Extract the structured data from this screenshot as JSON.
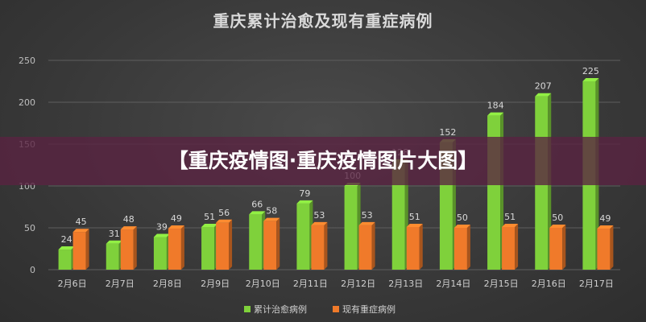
{
  "chart_data": {
    "type": "bar",
    "title": "重庆累计治愈及现有重症病例",
    "categories": [
      "2月6日",
      "2月7日",
      "2月8日",
      "2月9日",
      "2月10日",
      "2月11日",
      "2月12日",
      "2月13日",
      "2月14日",
      "2月15日",
      "2月16日",
      "2月17日"
    ],
    "series": [
      {
        "name": "累计治愈病例",
        "color": "#7fd13b",
        "values": [
          24,
          31,
          39,
          51,
          66,
          79,
          100,
          128,
          152,
          184,
          207,
          225
        ]
      },
      {
        "name": "现有重症病例",
        "color": "#f07a2a",
        "values": [
          45,
          48,
          49,
          56,
          58,
          53,
          53,
          51,
          50,
          51,
          50,
          49
        ]
      }
    ],
    "yticks": [
      0,
      50,
      100,
      150,
      200,
      250
    ],
    "ylim": [
      0,
      250
    ],
    "grid": true,
    "legend": "bottom"
  },
  "banner": {
    "text": "【重庆疫情图·重庆疫情图片大图】"
  }
}
